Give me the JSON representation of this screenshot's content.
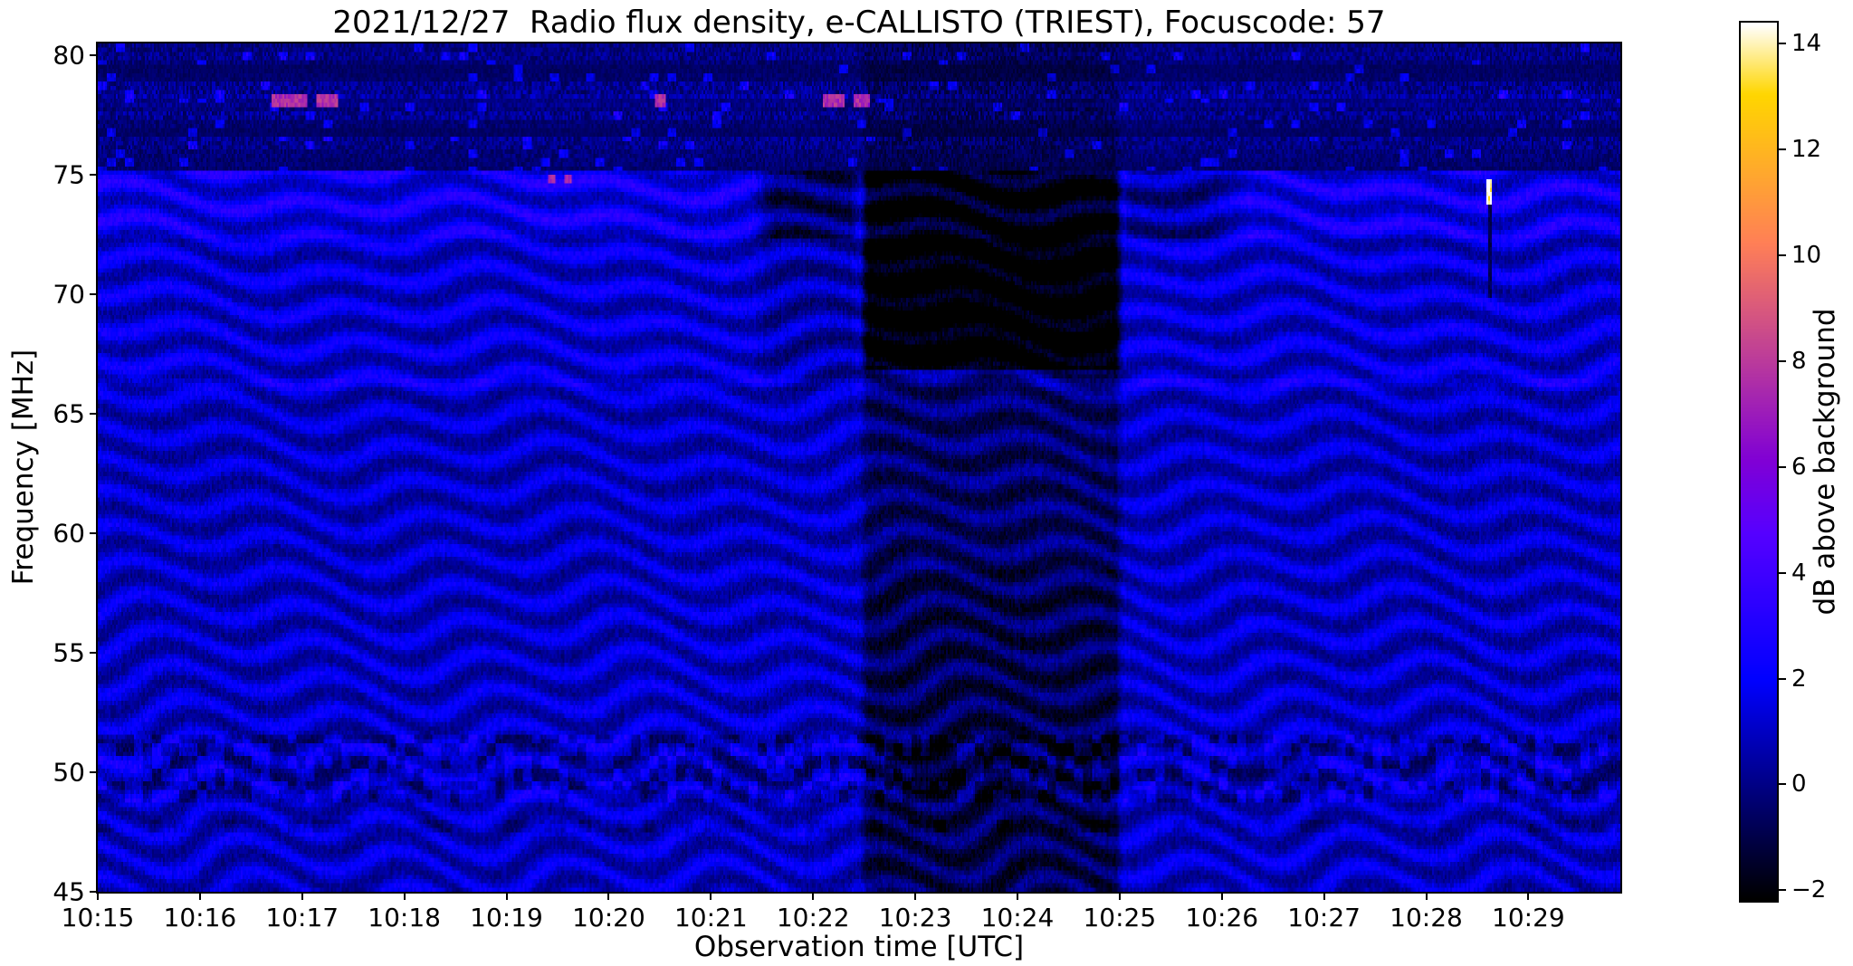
{
  "chart_data": {
    "type": "heatmap",
    "title": "2021/12/27  Radio flux density, e-CALLISTO (TRIEST), Focuscode: 57",
    "date": "2021/12/27",
    "station": "e-CALLISTO (TRIEST)",
    "focuscode": 57,
    "xlabel": "Observation time [UTC]",
    "ylabel": "Frequency [MHz]",
    "colorbar_label": "dB above background",
    "x_ticks": [
      "10:15",
      "10:16",
      "10:17",
      "10:18",
      "10:19",
      "10:20",
      "10:21",
      "10:22",
      "10:23",
      "10:24",
      "10:25",
      "10:26",
      "10:27",
      "10:28",
      "10:29"
    ],
    "x_range_minutes": [
      0,
      14.9
    ],
    "y_ticks": [
      80,
      75,
      70,
      65,
      60,
      55,
      50,
      45
    ],
    "y_range": [
      45,
      80.5
    ],
    "colorbar_tick_values": [
      14,
      12,
      10,
      8,
      6,
      4,
      2,
      0,
      -2
    ],
    "colorbar_tick_labels": [
      "14",
      "12",
      "10",
      "8",
      "6",
      "4",
      "2",
      "0",
      "−2"
    ],
    "colorbar_range": [
      -2.2,
      14.4
    ],
    "colormap": "gnuplot2",
    "grid": false,
    "legend": "none",
    "spectrogram": {
      "description": "Dynamic radio spectrum: wavy blue interference fringe bands drifting in time across 45-75 MHz; brighter blue-violet band 72.5-75 MHz; dark noisy speckled band 75.3-80.5 MHz with sparse bright dashes; near-black data-gap column from about 10:22.5 to 10:25 (deepest 67-75 MHz, dimming all frequencies); upper band also dimmed about 10:21.4-10:22.5 and 10:25-10:26.2; dashed dark interference rows near 48.7-51.6 MHz; short magenta RFI bursts near 78.2 MHz around 10:17-10:18 and 10:22-10:23; magenta dots near 74.8 MHz around 10:19.4; single bright yellow-white point burst at about 10:28.6 / 74.3 MHz with a narrow dark streak below it; faint bright horizontal line near 66.3 MHz",
      "fringe_wavelength_mhz": 1.45,
      "background_db_range": [
        -1,
        3
      ],
      "dark_block_minutes": [
        7.5,
        10.0
      ],
      "pre_dim_minutes": [
        6.35,
        7.5
      ],
      "post_dim_minutes": [
        10.0,
        11.3
      ],
      "magenta_segments": [
        [
          1.7,
          2.05
        ],
        [
          2.15,
          2.35
        ],
        [
          5.45,
          5.55
        ],
        [
          7.1,
          7.3
        ],
        [
          7.4,
          7.55
        ]
      ],
      "magenta_dots": [
        4.45,
        4.6
      ],
      "bright_spot": {
        "t": 13.62,
        "f": 74.3,
        "db": 13
      }
    }
  }
}
